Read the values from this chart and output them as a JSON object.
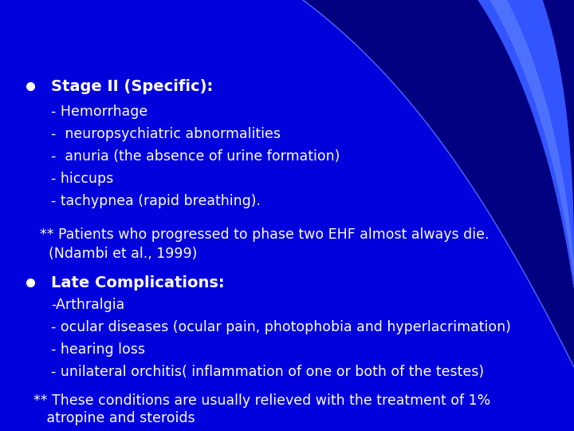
{
  "bg_color": "#000080",
  "main_bg": "#0000dd",
  "text_color": "#ffffff",
  "bullet_color": "#ffffff",
  "font_family": "DejaVu Sans",
  "title_fontsize": 14,
  "body_fontsize": 12.5,
  "bullet1_header": "Stage II (Specific):",
  "bullet1_lines": [
    "- Hemorrhage",
    "-  neuropsychiatric abnormalities",
    "-  anuria (the absence of urine formation)",
    "- hiccups",
    "- tachypnea (rapid breathing)."
  ],
  "note1_line1": "** Patients who progressed to phase two EHF almost always die.",
  "note1_line2": "  (Ndambi et al., 1999)",
  "bullet2_header": "Late Complications:",
  "bullet2_lines": [
    "-Arthralgia",
    "- ocular diseases (ocular pain, photophobia and hyperlacrimation)",
    "- hearing loss",
    "- unilateral orchitis( inflammation of one or both of the testes)"
  ],
  "note2_line1": "** These conditions are usually relieved with the treatment of 1%",
  "note2_line2": "   atropine and steroids"
}
